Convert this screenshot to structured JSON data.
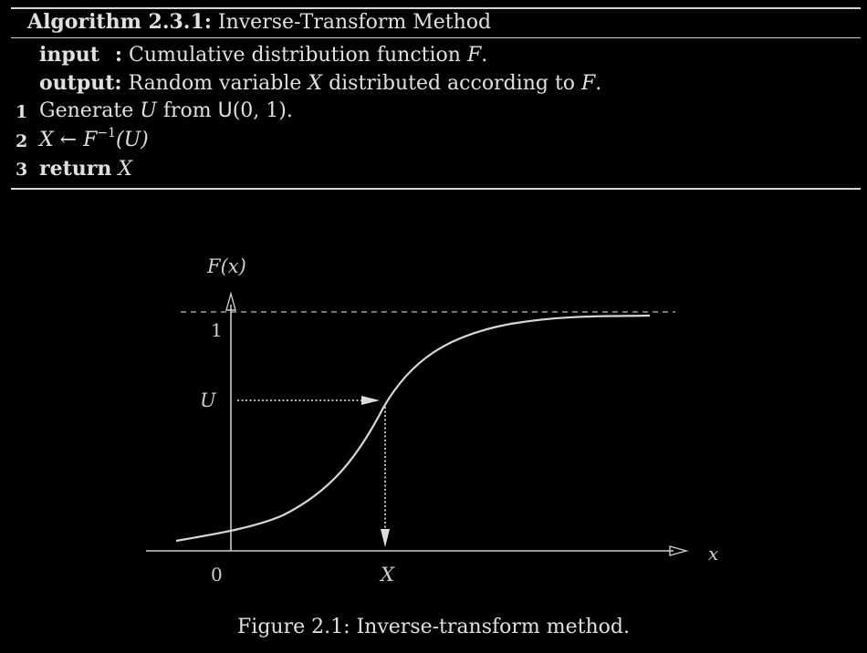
{
  "algorithm": {
    "label": "Algorithm 2.3.1:",
    "title": "Inverse-Transform Method",
    "input_label": "input",
    "input_colon": ":",
    "input_text": "Cumulative distribution function",
    "input_var": "F",
    "output_label": "output:",
    "output_text_a": "Random variable",
    "output_var": "X",
    "output_text_b": "distributed according to",
    "output_var2": "F",
    "steps": [
      {
        "num": "1",
        "text_a": "Generate",
        "var": "U",
        "text_b": "from",
        "dist": "U",
        "args": "(0, 1)."
      },
      {
        "num": "2",
        "lhs": "X",
        "arrow": "←",
        "fn": "F",
        "sup": "−1",
        "arg": "(U)"
      },
      {
        "num": "3",
        "kw": "return",
        "var": "X"
      }
    ]
  },
  "figure": {
    "y_axis_label": "F(x)",
    "x_axis_label": "x",
    "tick_one": "1",
    "tick_zero": "0",
    "u_label": "U",
    "x_label": "X",
    "caption": "Figure 2.1: Inverse-transform method."
  },
  "colors": {
    "background": "#000000",
    "text": "#e0e0e0",
    "curve": "#d8d8d8",
    "axis": "#cccccc"
  }
}
